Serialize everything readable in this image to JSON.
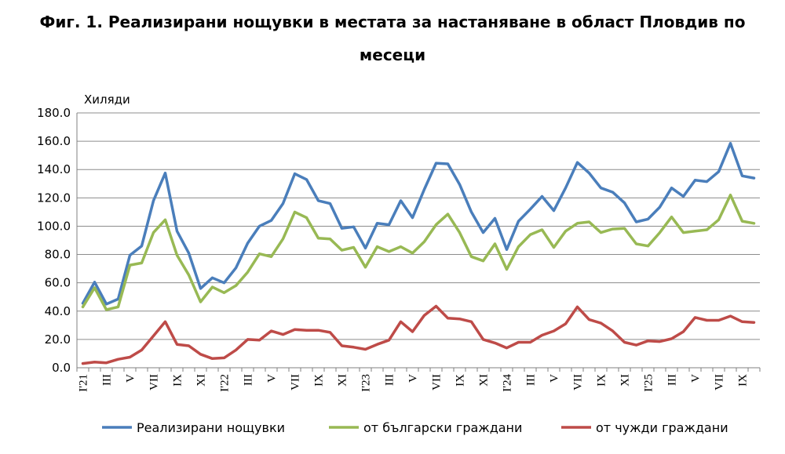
{
  "chart_data": {
    "type": "line",
    "title_line1": "Фиг. 1. Реализирани нощувки в местата за настаняване в област Пловдив по",
    "title_line2": "месеци",
    "unit_label": "Хиляди",
    "ylim": [
      0,
      180
    ],
    "ytick_labels": [
      "0.0",
      "20.0",
      "40.0",
      "60.0",
      "80.0",
      "100.0",
      "120.0",
      "140.0",
      "160.0",
      "180.0"
    ],
    "ytick_values": [
      0,
      20,
      40,
      60,
      80,
      100,
      120,
      140,
      160,
      180
    ],
    "grid": true,
    "legend_position": "bottom",
    "x_tick_labels": [
      "I'21",
      "III",
      "V",
      "VII",
      "IX",
      "XI",
      "I'22",
      "III",
      "V",
      "VII",
      "IX",
      "XI",
      "I'23",
      "III",
      "V",
      "VII",
      "IX",
      "XI",
      "I'24",
      "III",
      "V",
      "VII",
      "IX",
      "XI",
      "I'25",
      "III",
      "V",
      "VII",
      "IX"
    ],
    "colors": {
      "total": "#4a7ebb",
      "bulgarian": "#98b954",
      "foreign": "#be4b48"
    },
    "series": [
      {
        "name": "Реализирани нощувки",
        "color": "#4a7ebb",
        "values": [
          45.5,
          60.5,
          45,
          48.5,
          79.5,
          86,
          118,
          137.5,
          96.5,
          81,
          56,
          63.5,
          60,
          70.5,
          88,
          100,
          104,
          116,
          137,
          133,
          118,
          116,
          98.5,
          99.5,
          84.5,
          102,
          101,
          118,
          106,
          126,
          144.5,
          144,
          129.5,
          110,
          95.5,
          105.5,
          83.5,
          103.5,
          112,
          121,
          111,
          127,
          145,
          137.5,
          127,
          124,
          116.5,
          103,
          105,
          113.5,
          127,
          121,
          132.5,
          131.5,
          138.5,
          158.5,
          135.5,
          134
        ]
      },
      {
        "name": "от български граждани",
        "color": "#98b954",
        "values": [
          43,
          56.5,
          41,
          43,
          72.5,
          74,
          95.5,
          104.5,
          79.5,
          65.5,
          46.5,
          57,
          53,
          58,
          67.5,
          80.5,
          78.5,
          91,
          110,
          106,
          91.5,
          91,
          83,
          85,
          71,
          85.5,
          82,
          85.5,
          81,
          89,
          101,
          108.5,
          95.5,
          78.5,
          75.5,
          87.5,
          69.5,
          85.5,
          94,
          97.5,
          85,
          96.5,
          102,
          103,
          95.5,
          98,
          98.5,
          87.5,
          86,
          95.5,
          106.5,
          95.5,
          96.5,
          97.5,
          104.5,
          122,
          103.5,
          102
        ]
      },
      {
        "name": "от чужди граждани",
        "color": "#be4b48",
        "values": [
          3,
          4,
          3.5,
          6,
          7.5,
          12.5,
          22.5,
          32.5,
          16.5,
          15.5,
          9.5,
          6.5,
          7,
          12.5,
          20,
          19.5,
          26,
          23.5,
          27,
          26.5,
          26.5,
          25,
          15.5,
          14.5,
          13,
          16.5,
          19.5,
          32.5,
          25.5,
          37,
          43.5,
          35,
          34.5,
          32.5,
          20,
          17.5,
          14,
          18,
          18,
          23,
          26,
          31,
          43,
          34,
          31.5,
          26,
          18,
          16,
          19,
          18.5,
          20.5,
          25.5,
          35.5,
          33.5,
          33.5,
          36.5,
          32.5,
          32
        ]
      }
    ]
  }
}
